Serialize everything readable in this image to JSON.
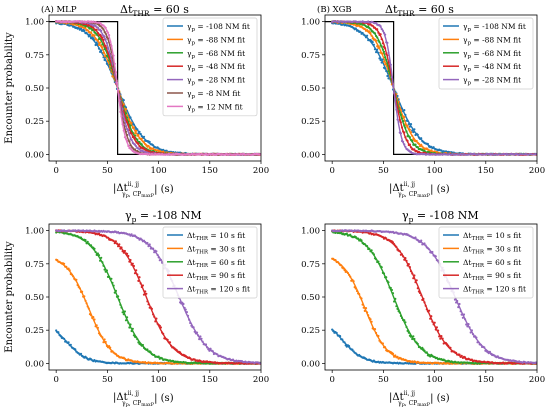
{
  "figure": {
    "panels": [
      {
        "id": "A",
        "label": "(A) MLP",
        "title_main": "Δt",
        "title_sub": "THR",
        "title_rest": " = 60 s",
        "ylabel": "Encounter probability",
        "xlabel": "|Δt",
        "xlabel_sup": "ii, jj",
        "xlabel_sub": "γ",
        "xlabel_sub2": "p",
        "xlabel_sub3": ", CP",
        "xlabel_sub4": "max",
        "xlabel_sub5": "P",
        "xlabel_rest": "| (s)",
        "legend_prefix": "γ",
        "legend_prefix_sub": "p",
        "legend_entries": [
          " = -108 NM fit",
          " = -88 NM fit",
          " = -68 NM fit",
          " = -48 NM fit",
          " = -28 NM fit",
          " = -8 NM fit",
          " = 12 NM fit"
        ],
        "legend_entries_mode": "gamma",
        "ylabel_show": true
      },
      {
        "id": "B",
        "label": "(B) XGB",
        "title_main": "Δt",
        "title_sub": "THR",
        "title_rest": " = 60 s",
        "ylabel": "",
        "xlabel": "|Δt",
        "xlabel_sup": "ii, jj",
        "xlabel_sub": "γ",
        "xlabel_sub2": "p",
        "xlabel_sub3": ", CP",
        "xlabel_sub4": "max",
        "xlabel_sub5": "P",
        "xlabel_rest": "| (s)",
        "legend_prefix": "γ",
        "legend_prefix_sub": "p",
        "legend_entries": [
          " = -108 NM fit",
          " = -88 NM fit",
          " = -68 NM fit",
          " = -48 NM fit",
          " = -28 NM fit"
        ],
        "legend_entries_mode": "gamma",
        "ylabel_show": false
      },
      {
        "id": "C",
        "label": "",
        "title_main": "γ",
        "title_sub": "p",
        "title_rest": " = -108 NM",
        "ylabel": "Encounter probability",
        "xlabel": "|Δt",
        "xlabel_sup": "ii, jj",
        "xlabel_sub": "γ",
        "xlabel_sub2": "p",
        "xlabel_sub3": ", CP",
        "xlabel_sub4": "max",
        "xlabel_sub5": "P",
        "xlabel_rest": "| (s)",
        "legend_prefix": "Δt",
        "legend_prefix_sub": "THR",
        "legend_entries": [
          " = 10 s fit",
          " = 30 s fit",
          " = 60 s fit",
          " = 90 s fit",
          " = 120 s fit"
        ],
        "legend_entries_mode": "thr",
        "ylabel_show": true
      },
      {
        "id": "D",
        "label": "",
        "title_main": "γ",
        "title_sub": "p",
        "title_rest": " = -108 NM",
        "ylabel": "",
        "xlabel": "|Δt",
        "xlabel_sup": "ii, jj",
        "xlabel_sub": "γ",
        "xlabel_sub2": "p",
        "xlabel_sub3": ", CP",
        "xlabel_sub4": "max",
        "xlabel_sub5": "P",
        "xlabel_rest": "| (s)",
        "legend_prefix": "Δt",
        "legend_prefix_sub": "THR",
        "legend_entries": [
          " = 10 s fit",
          " = 30 s fit",
          " = 60 s fit",
          " = 90 s fit",
          " = 120 s fit"
        ],
        "legend_entries_mode": "thr",
        "ylabel_show": false
      }
    ],
    "xticks": [
      "0",
      "50",
      "100",
      "150",
      "200"
    ],
    "yticks": [
      "0.00",
      "0.25",
      "0.50",
      "0.75",
      "1.00"
    ]
  },
  "chart_data": [
    {
      "type": "line",
      "panel": "A",
      "xlim": [
        -7,
        200
      ],
      "ylim": [
        -0.05,
        1.05
      ],
      "step_threshold": 60,
      "series": [
        {
          "name": "-108 NM fit",
          "color": "#1f77b4",
          "midpoint": 60,
          "scale": 13
        },
        {
          "name": "-88 NM fit",
          "color": "#ff7f0e",
          "midpoint": 60,
          "scale": 11
        },
        {
          "name": "-68 NM fit",
          "color": "#2ca02c",
          "midpoint": 60,
          "scale": 9
        },
        {
          "name": "-48 NM fit",
          "color": "#d62728",
          "midpoint": 60,
          "scale": 8
        },
        {
          "name": "-28 NM fit",
          "color": "#9467bd",
          "midpoint": 60,
          "scale": 6.5
        },
        {
          "name": "-8 NM fit",
          "color": "#8c564b",
          "midpoint": 60,
          "scale": 5
        },
        {
          "name": "12 NM fit",
          "color": "#e377c2",
          "midpoint": 60,
          "scale": 4
        }
      ]
    },
    {
      "type": "line",
      "panel": "B",
      "xlim": [
        -7,
        200
      ],
      "ylim": [
        -0.05,
        1.05
      ],
      "step_threshold": 60,
      "series": [
        {
          "name": "-108 NM fit",
          "color": "#1f77b4",
          "midpoint": 60,
          "scale": 13
        },
        {
          "name": "-88 NM fit",
          "color": "#ff7f0e",
          "midpoint": 60,
          "scale": 10
        },
        {
          "name": "-68 NM fit",
          "color": "#2ca02c",
          "midpoint": 60,
          "scale": 8
        },
        {
          "name": "-48 NM fit",
          "color": "#d62728",
          "midpoint": 60,
          "scale": 6
        },
        {
          "name": "-28 NM fit",
          "color": "#9467bd",
          "midpoint": 60,
          "scale": 4
        }
      ]
    },
    {
      "type": "line",
      "panel": "C",
      "xlim": [
        -7,
        200
      ],
      "ylim": [
        -0.05,
        1.05
      ],
      "series": [
        {
          "name": "10 s fit",
          "color": "#1f77b4",
          "max": 0.33,
          "midpoint": 10,
          "scale": 10
        },
        {
          "name": "30 s fit",
          "color": "#ff7f0e",
          "max": 0.82,
          "midpoint": 32,
          "scale": 11
        },
        {
          "name": "60 s fit",
          "color": "#2ca02c",
          "max": 1.0,
          "midpoint": 60,
          "scale": 13
        },
        {
          "name": "90 s fit",
          "color": "#d62728",
          "max": 1.0,
          "midpoint": 88,
          "scale": 13
        },
        {
          "name": "120 s fit",
          "color": "#9467bd",
          "max": 1.0,
          "midpoint": 120,
          "scale": 14
        }
      ]
    },
    {
      "type": "line",
      "panel": "D",
      "xlim": [
        -7,
        200
      ],
      "ylim": [
        -0.05,
        1.05
      ],
      "series": [
        {
          "name": "10 s fit",
          "color": "#1f77b4",
          "max": 0.35,
          "midpoint": 10,
          "scale": 10
        },
        {
          "name": "30 s fit",
          "color": "#ff7f0e",
          "max": 0.83,
          "midpoint": 32,
          "scale": 11
        },
        {
          "name": "60 s fit",
          "color": "#2ca02c",
          "max": 1.0,
          "midpoint": 60,
          "scale": 13
        },
        {
          "name": "90 s fit",
          "color": "#d62728",
          "max": 1.0,
          "midpoint": 88,
          "scale": 13
        },
        {
          "name": "120 s fit",
          "color": "#9467bd",
          "max": 1.0,
          "midpoint": 120,
          "scale": 14
        }
      ]
    }
  ]
}
